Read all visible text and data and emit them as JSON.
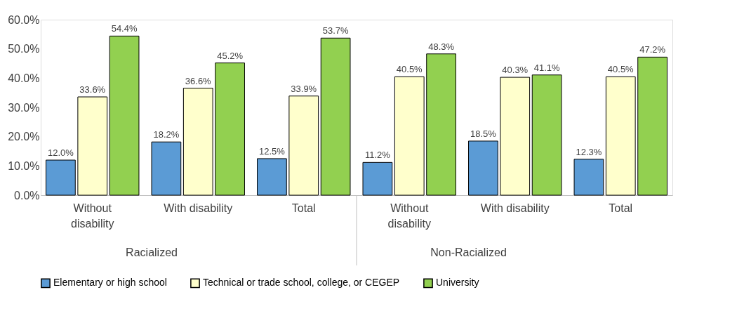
{
  "chart_data": {
    "type": "bar",
    "categories": [
      "Without disability",
      "With disability",
      "Total",
      "Without disability",
      "With disability",
      "Total"
    ],
    "series": [
      {
        "name": "Elementary or high school",
        "color": "#5b9bd5",
        "values": [
          12.0,
          18.2,
          12.5,
          11.2,
          18.5,
          12.3
        ],
        "value_labels": [
          "12.0%",
          "18.2%",
          "12.5%",
          "11.2%",
          "18.5%",
          "12.3%"
        ]
      },
      {
        "name": "Technical or trade school, college, or CEGEP",
        "color": "#ffffcc",
        "values": [
          33.6,
          36.6,
          33.9,
          40.5,
          40.3,
          40.5
        ],
        "value_labels": [
          "33.6%",
          "36.6%",
          "33.9%",
          "40.5%",
          "40.3%",
          "40.5%"
        ]
      },
      {
        "name": "University",
        "color": "#92d050",
        "values": [
          54.4,
          45.2,
          53.7,
          48.3,
          41.1,
          47.2
        ],
        "value_labels": [
          "54.4%",
          "45.2%",
          "53.7%",
          "48.3%",
          "41.1%",
          "47.2%"
        ]
      }
    ],
    "annotations": [
      "Racialized",
      "Non-Racialized"
    ],
    "ylim": [
      0,
      60
    ],
    "yticks": [
      {
        "value": 0,
        "label": "0.0%"
      },
      {
        "value": 10,
        "label": "10.0%"
      },
      {
        "value": 20,
        "label": "20.0%"
      },
      {
        "value": 30,
        "label": "30.0%"
      },
      {
        "value": 40,
        "label": "40.0%"
      },
      {
        "value": 50,
        "label": "50.0%"
      },
      {
        "value": 60,
        "label": "60.0%"
      }
    ],
    "grid": false,
    "legend": "bottom"
  }
}
